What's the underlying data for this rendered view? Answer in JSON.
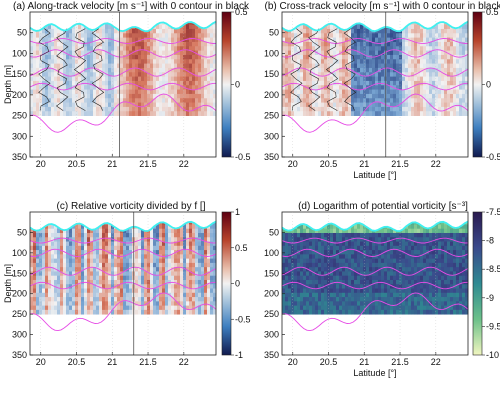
{
  "chart_data": [
    {
      "type": "heatmap",
      "title": "(a) Along-track velocity [m s⁻¹] with 0 contour in black",
      "xlabel": "",
      "ylabel": "Depth [m]",
      "xlim": [
        19.85,
        22.45
      ],
      "ylim": [
        350,
        0
      ],
      "x_ticks": [
        "20",
        "20.5",
        "21",
        "21.5",
        "22"
      ],
      "y_ticks": [
        "50",
        "100",
        "150",
        "200",
        "250",
        "300",
        "350"
      ],
      "colorbar": {
        "min": -0.5,
        "max": 0.5,
        "ticks": [
          "0.5",
          "0",
          "-0.5"
        ],
        "colormap": "blue-white-red"
      },
      "vertical_line_x": 21.1,
      "mixed_layer_line_color": "#3ff0f0",
      "isopycnal_color": "#e64ce6"
    },
    {
      "type": "heatmap",
      "title": "(b) Cross-track velocity [m s⁻¹] with 0 contour in black",
      "xlabel": "Latitude [°]",
      "ylabel": "",
      "xlim": [
        19.85,
        22.45
      ],
      "ylim": [
        350,
        0
      ],
      "x_ticks": [
        "20",
        "20.5",
        "21",
        "21.5",
        "22"
      ],
      "y_ticks": [
        "50",
        "100",
        "150",
        "200",
        "250",
        "300",
        "350"
      ],
      "colorbar": {
        "min": -0.5,
        "max": 0.5,
        "ticks": [
          "0.5",
          "0",
          "-0.5"
        ],
        "colormap": "blue-white-red"
      },
      "vertical_line_x": 21.3,
      "mixed_layer_line_color": "#3ff0f0",
      "isopycnal_color": "#e64ce6"
    },
    {
      "type": "heatmap",
      "title": "(c) Relative vorticity divided by f []",
      "xlabel": "",
      "ylabel": "Depth [m]",
      "xlim": [
        19.85,
        22.45
      ],
      "ylim": [
        350,
        0
      ],
      "x_ticks": [
        "20",
        "20.5",
        "21",
        "21.5",
        "22"
      ],
      "y_ticks": [
        "50",
        "100",
        "150",
        "200",
        "250",
        "300",
        "350"
      ],
      "colorbar": {
        "min": -1,
        "max": 1,
        "ticks": [
          "1",
          "0.5",
          "0",
          "-0.5",
          "-1"
        ],
        "colormap": "blue-white-red"
      },
      "vertical_line_x": 21.3,
      "mixed_layer_line_color": "#3ff0f0",
      "isopycnal_color": "#e64ce6"
    },
    {
      "type": "heatmap",
      "title": "(d) Logarithm of potential vorticity [s⁻³]",
      "xlabel": "Latitude [°]",
      "ylabel": "",
      "xlim": [
        19.85,
        22.45
      ],
      "ylim": [
        350,
        0
      ],
      "x_ticks": [
        "20",
        "20.5",
        "21",
        "21.5",
        "22"
      ],
      "y_ticks": [
        "50",
        "100",
        "150",
        "200",
        "250",
        "300",
        "350"
      ],
      "colorbar": {
        "min": -10,
        "max": -7.5,
        "ticks": [
          "-7.5",
          "-8",
          "-8.5",
          "-9",
          "-9.5",
          "-10"
        ],
        "colormap": "navy-teal-green-yellow"
      },
      "vertical_line_x": null,
      "mixed_layer_line_color": "#3ff0f0",
      "isopycnal_color": "#e64ce6"
    }
  ]
}
